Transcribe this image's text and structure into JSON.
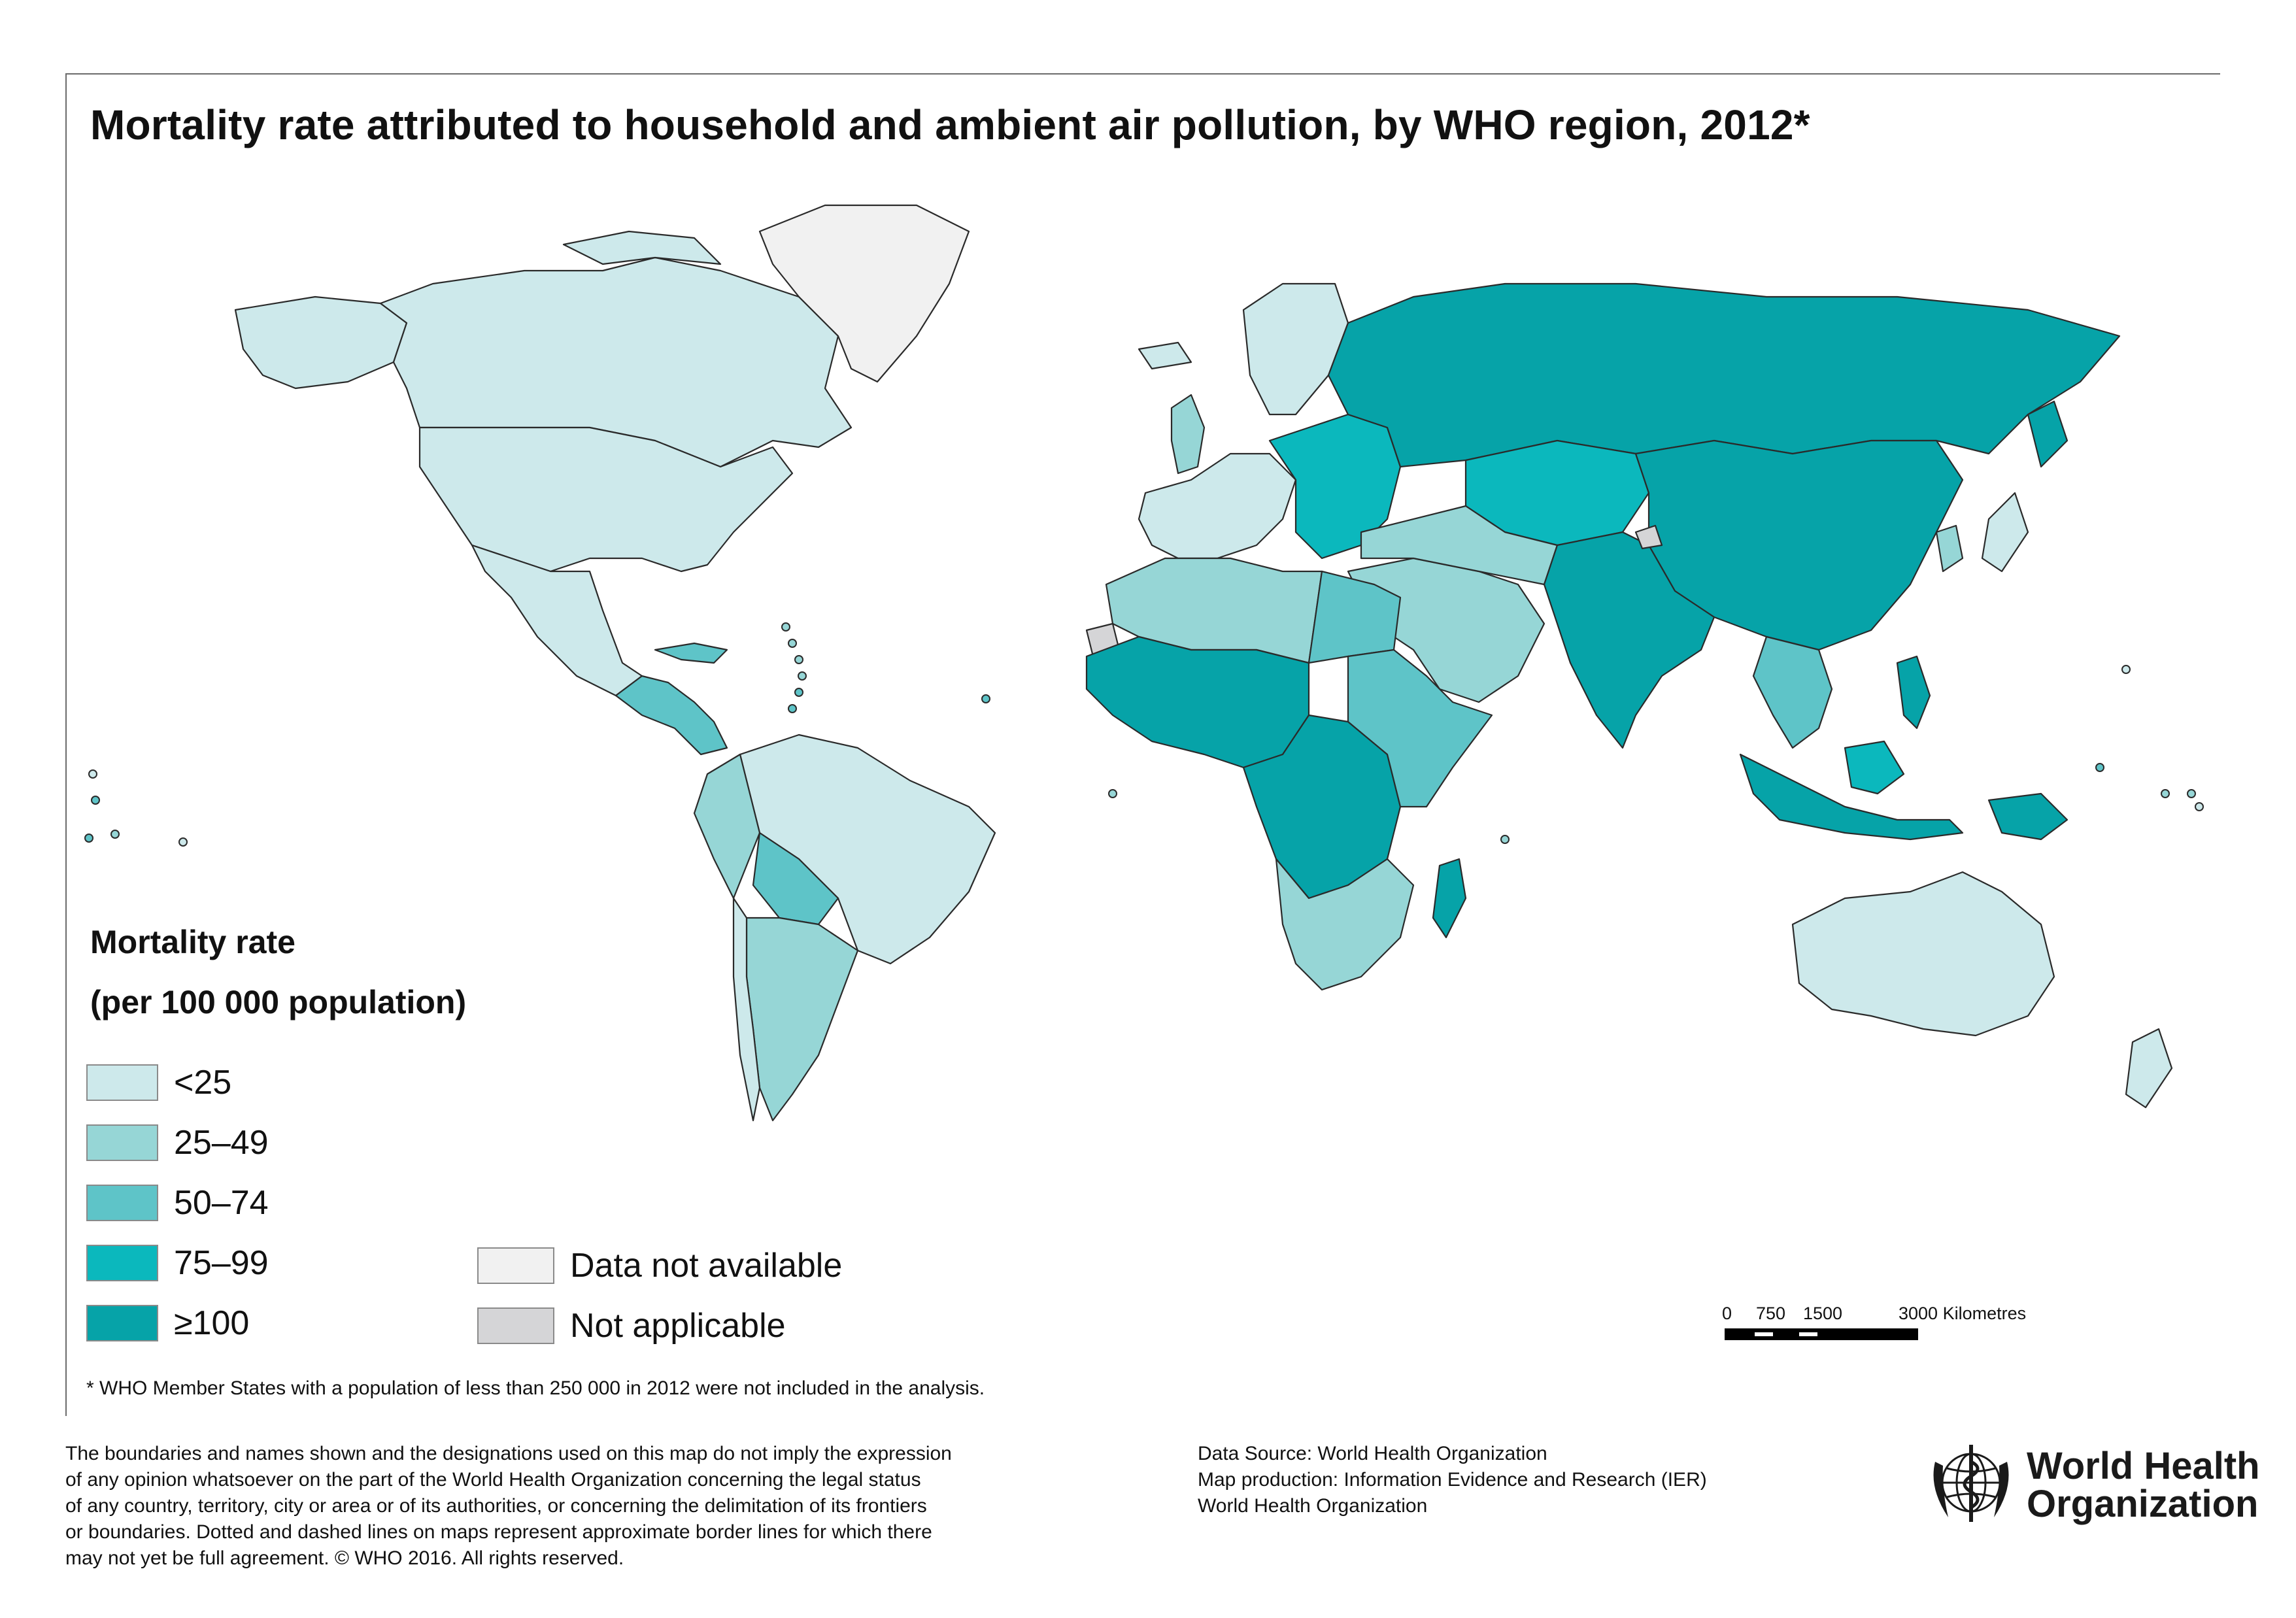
{
  "title": "Mortality rate attributed to household and ambient air pollution, by WHO region, 2012*",
  "legend": {
    "heading_line1": "Mortality rate",
    "heading_line2": "(per 100 000 population)",
    "classes": [
      {
        "label": "<25",
        "color": "#cde9eb"
      },
      {
        "label": "25–49",
        "color": "#96d6d6"
      },
      {
        "label": "50–74",
        "color": "#5ec4c8"
      },
      {
        "label": "75–99",
        "color": "#0bb8bd"
      },
      {
        "label": "≥100",
        "color": "#06a3a8"
      }
    ],
    "other": [
      {
        "label": "Data not available",
        "color": "#f1f1f1"
      },
      {
        "label": "Not applicable",
        "color": "#d5d5d7"
      }
    ]
  },
  "footnote": "* WHO Member States with a population of less than 250 000 in 2012 were not included in the analysis.",
  "scale_bar": {
    "ticks": [
      "0",
      "750",
      "1500",
      "3000 Kilometres"
    ]
  },
  "disclaimer_lines": [
    "The boundaries and names shown and the designations used on this map do not imply the expression",
    "of any opinion whatsoever on the part of the World Health Organization concerning the legal status",
    "of any country, territory, city or area or of its authorities, or concerning the delimitation of its frontiers",
    "or boundaries. Dotted and dashed lines on maps represent approximate border lines for which there",
    "may not yet be full agreement. © WHO 2016. All rights reserved."
  ],
  "source": {
    "data_source": "Data Source: World Health Organization",
    "map_production": "Map production: Information Evidence and Research (IER)",
    "org": "World Health Organization"
  },
  "logo": {
    "line1": "World Health",
    "line2": "Organization",
    "icon": "who-emblem-icon"
  },
  "map_regions": [
    {
      "name": "canada",
      "class": "<25"
    },
    {
      "name": "usa",
      "class": "<25"
    },
    {
      "name": "alaska",
      "class": "<25"
    },
    {
      "name": "greenland",
      "class": "Data not available"
    },
    {
      "name": "mexico",
      "class": "<25"
    },
    {
      "name": "central-america",
      "class": "50–74"
    },
    {
      "name": "south-america-east",
      "class": "<25"
    },
    {
      "name": "south-america-andes",
      "class": "25–49"
    },
    {
      "name": "bolivia",
      "class": "50–74"
    },
    {
      "name": "argentina",
      "class": "25–49"
    },
    {
      "name": "western-europe",
      "class": "<25"
    },
    {
      "name": "scandinavia",
      "class": "<25"
    },
    {
      "name": "eastern-europe",
      "class": "75–99"
    },
    {
      "name": "russia",
      "class": "≥100"
    },
    {
      "name": "central-asia",
      "class": "75–99"
    },
    {
      "name": "north-africa",
      "class": "25–49"
    },
    {
      "name": "egypt",
      "class": "50–74"
    },
    {
      "name": "west-africa",
      "class": "≥100"
    },
    {
      "name": "central-africa",
      "class": "≥100"
    },
    {
      "name": "east-africa",
      "class": "50–74"
    },
    {
      "name": "southern-africa",
      "class": "25–49"
    },
    {
      "name": "madagascar",
      "class": "≥100"
    },
    {
      "name": "middle-east",
      "class": "25–49"
    },
    {
      "name": "south-asia",
      "class": "≥100"
    },
    {
      "name": "china",
      "class": "≥100"
    },
    {
      "name": "south-east-asia",
      "class": "50–74"
    },
    {
      "name": "indonesia",
      "class": "≥100"
    },
    {
      "name": "japan",
      "class": "<25"
    },
    {
      "name": "australia",
      "class": "<25"
    },
    {
      "name": "new-zealand",
      "class": "<25"
    },
    {
      "name": "papua-new-guinea",
      "class": "≥100"
    },
    {
      "name": "kashmir",
      "class": "Not applicable"
    },
    {
      "name": "western-sahara",
      "class": "Not applicable"
    }
  ]
}
